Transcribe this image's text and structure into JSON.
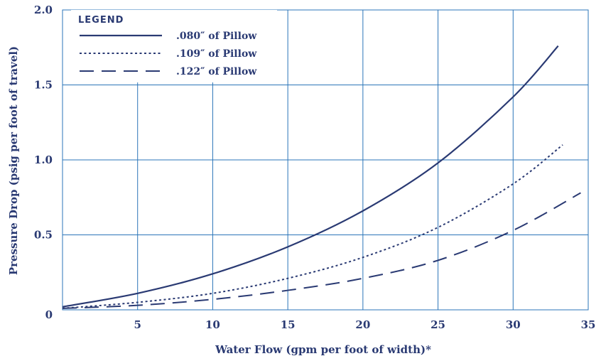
{
  "chart_data": {
    "type": "line",
    "title": "",
    "xlabel": "Water Flow (gpm per foot of width)*",
    "ylabel": "Pressure Drop (psig per foot of travel)",
    "xlim": [
      0,
      35
    ],
    "ylim": [
      0,
      2.0
    ],
    "xticks": [
      5,
      10,
      15,
      20,
      25,
      30,
      35
    ],
    "yticks": [
      0,
      0.5,
      1.0,
      1.5,
      2.0
    ],
    "xtick_labels": [
      "5",
      "10",
      "15",
      "20",
      "25",
      "30",
      "35"
    ],
    "ytick_labels": [
      "0",
      "0.5",
      "1.0",
      "1.5",
      "2.0"
    ],
    "grid": true,
    "legend_title": "LEGEND",
    "legend_position": "top-left",
    "series": [
      {
        "name": ".080″ of Pillow",
        "style": "solid",
        "x": [
          0,
          5,
          10,
          15,
          20,
          25,
          30,
          33
        ],
        "y": [
          0.02,
          0.11,
          0.24,
          0.42,
          0.66,
          0.98,
          1.42,
          1.76
        ]
      },
      {
        "name": ".109″ of Pillow",
        "style": "dotted",
        "x": [
          0,
          5,
          10,
          15,
          20,
          25,
          30,
          33.3
        ],
        "y": [
          0.01,
          0.05,
          0.11,
          0.21,
          0.35,
          0.55,
          0.84,
          1.1
        ]
      },
      {
        "name": ".122″ of Pillow",
        "style": "dashed",
        "x": [
          0,
          5,
          10,
          15,
          20,
          25,
          30,
          34.5
        ],
        "y": [
          0.01,
          0.03,
          0.07,
          0.13,
          0.21,
          0.33,
          0.53,
          0.78
        ]
      }
    ]
  },
  "colors": {
    "line": "#2a3a73",
    "grid": "#2b75b8",
    "text": "#2a3a73"
  }
}
